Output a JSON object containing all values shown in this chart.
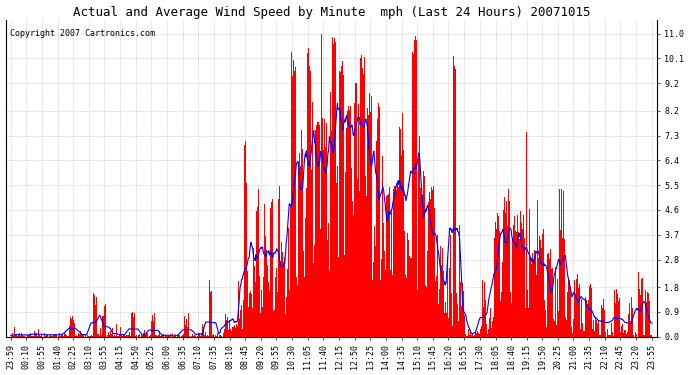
{
  "title": "Actual and Average Wind Speed by Minute  mph (Last 24 Hours) 20071015",
  "copyright_text": "Copyright 2007 Cartronics.com",
  "yticks": [
    0.0,
    0.9,
    1.8,
    2.8,
    3.7,
    4.6,
    5.5,
    6.4,
    7.3,
    8.2,
    9.2,
    10.1,
    11.0
  ],
  "ylim": [
    0.0,
    11.5
  ],
  "xtick_labels": [
    "23:59",
    "00:10",
    "00:55",
    "01:40",
    "02:25",
    "03:10",
    "03:55",
    "04:15",
    "04:50",
    "05:25",
    "06:00",
    "06:35",
    "07:10",
    "07:35",
    "08:10",
    "08:45",
    "09:20",
    "09:55",
    "10:30",
    "11:05",
    "11:40",
    "12:15",
    "12:50",
    "13:25",
    "14:00",
    "14:35",
    "15:10",
    "15:45",
    "16:20",
    "16:55",
    "17:30",
    "18:05",
    "18:40",
    "19:15",
    "19:50",
    "20:25",
    "21:00",
    "21:35",
    "22:10",
    "22:45",
    "23:20",
    "23:55"
  ],
  "bar_color": "#FF0000",
  "line_color": "#0000FF",
  "background_color": "#FFFFFF",
  "grid_color": "#B0B0B0",
  "title_fontsize": 9,
  "copyright_fontsize": 6,
  "tick_fontsize": 6,
  "fig_width": 6.9,
  "fig_height": 3.75,
  "dpi": 100
}
